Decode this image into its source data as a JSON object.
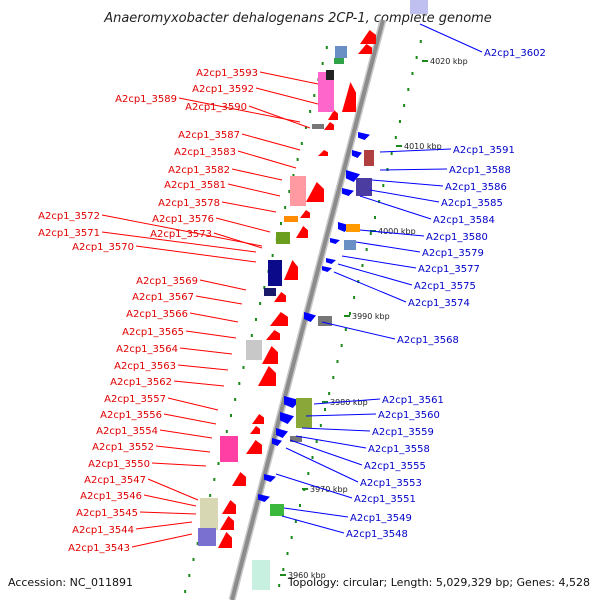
{
  "title": "Anaeromyxobacter dehalogenans 2CP-1, complete genome",
  "footer": {
    "accession": "Accession: NC_011891",
    "topology": "Topology: circular; Length: 5,029,329 bp; Genes: 4,528"
  },
  "kbp_labels": [
    "4020 kbp",
    "4010 kbp",
    "4000 kbp",
    "3990 kbp",
    "3980 kbp",
    "3970 kbp",
    "3960 kbp"
  ],
  "left_genes": [
    "A2cp1_3593",
    "A2cp1_3592",
    "A2cp1_3589",
    "A2cp1_3590",
    "A2cp1_3587",
    "A2cp1_3583",
    "A2cp1_3582",
    "A2cp1_3581",
    "A2cp1_3578",
    "A2cp1_3572",
    "A2cp1_3576",
    "A2cp1_3571",
    "A2cp1_3573",
    "A2cp1_3570",
    "A2cp1_3569",
    "A2cp1_3567",
    "A2cp1_3566",
    "A2cp1_3565",
    "A2cp1_3564",
    "A2cp1_3563",
    "A2cp1_3562",
    "A2cp1_3557",
    "A2cp1_3556",
    "A2cp1_3554",
    "A2cp1_3552",
    "A2cp1_3550",
    "A2cp1_3547",
    "A2cp1_3546",
    "A2cp1_3545",
    "A2cp1_3544",
    "A2cp1_3543"
  ],
  "right_genes": [
    "A2cp1_3602",
    "A2cp1_3591",
    "A2cp1_3588",
    "A2cp1_3586",
    "A2cp1_3585",
    "A2cp1_3584",
    "A2cp1_3580",
    "A2cp1_3579",
    "A2cp1_3577",
    "A2cp1_3575",
    "A2cp1_3574",
    "A2cp1_3568",
    "A2cp1_3561",
    "A2cp1_3560",
    "A2cp1_3559",
    "A2cp1_3558",
    "A2cp1_3555",
    "A2cp1_3553",
    "A2cp1_3551",
    "A2cp1_3549",
    "A2cp1_3548"
  ],
  "colors": {
    "backbone": "#8c8c8c",
    "forward": "#ff0000",
    "reverse": "#0000ff",
    "label_red": "#e00000",
    "label_blue": "#0000c8",
    "tick": "#1a8a1a"
  }
}
